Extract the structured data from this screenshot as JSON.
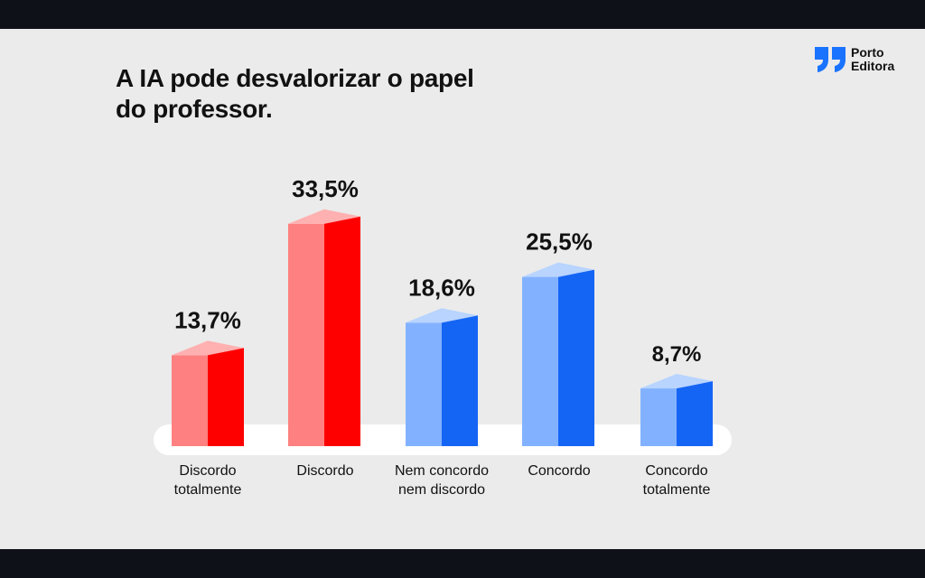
{
  "chart_data": {
    "type": "bar",
    "title_lines": [
      "A IA pode desvalorizar o papel",
      "do professor."
    ],
    "categories": [
      [
        "Discordo",
        "totalmente"
      ],
      [
        "Discordo"
      ],
      [
        "Nem concordo",
        "nem discordo"
      ],
      [
        "Concordo"
      ],
      [
        "Concordo",
        "totalmente"
      ]
    ],
    "values": [
      13.7,
      33.5,
      18.6,
      25.5,
      8.7
    ],
    "value_labels": [
      "13,7%",
      "33,5%",
      "18,6%",
      "25,5%",
      "8,7%"
    ],
    "xlabel": "",
    "ylabel": "",
    "ylim": [
      0,
      35
    ],
    "grid": false,
    "colors": [
      {
        "front": "#ff8080",
        "side": "#ff0000",
        "top": "#ffb0b0"
      },
      {
        "front": "#ff8080",
        "side": "#ff0000",
        "top": "#ffb0b0"
      },
      {
        "front": "#82b2ff",
        "side": "#1565f5",
        "top": "#b8d4ff"
      },
      {
        "front": "#82b2ff",
        "side": "#1565f5",
        "top": "#b8d4ff"
      },
      {
        "front": "#82b2ff",
        "side": "#1565f5",
        "top": "#b8d4ff"
      }
    ]
  },
  "brand": {
    "line1": "Porto",
    "line2": "Editora",
    "color": "#1a73ff"
  }
}
